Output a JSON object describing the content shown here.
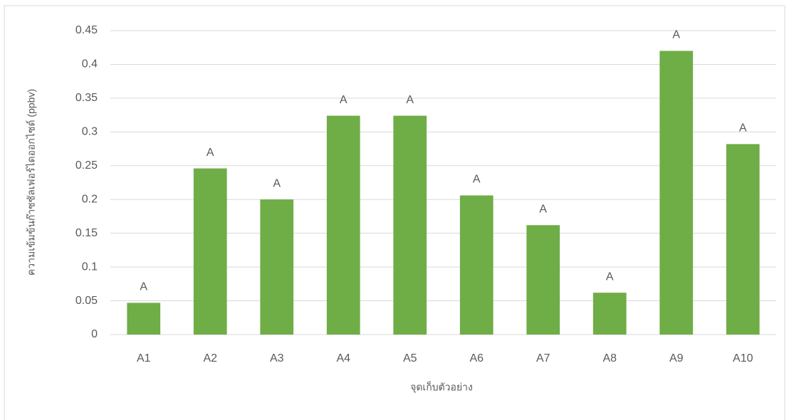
{
  "chart_data": {
    "type": "bar",
    "y_label": "ความเข้มข้นก๊าซซัลเฟอร์ไดออกไซด์ (ppbv)",
    "x_label": "จุดเก็บตัวอย่าง",
    "categories": [
      "A1",
      "A2",
      "A3",
      "A4",
      "A5",
      "A6",
      "A7",
      "A8",
      "A9",
      "A10"
    ],
    "values": [
      0.047,
      0.246,
      0.2,
      0.324,
      0.324,
      0.206,
      0.162,
      0.062,
      0.42,
      0.282
    ],
    "group_labels": [
      "A",
      "A",
      "A",
      "A",
      "A",
      "A",
      "A",
      "A",
      "A",
      "A"
    ],
    "color": "#6fad47",
    "ylim": [
      0,
      0.45
    ],
    "yticks": [
      0,
      0.05,
      0.1,
      0.15,
      0.2,
      0.25,
      0.3,
      0.35,
      0.4,
      0.45
    ],
    "grid": true
  }
}
